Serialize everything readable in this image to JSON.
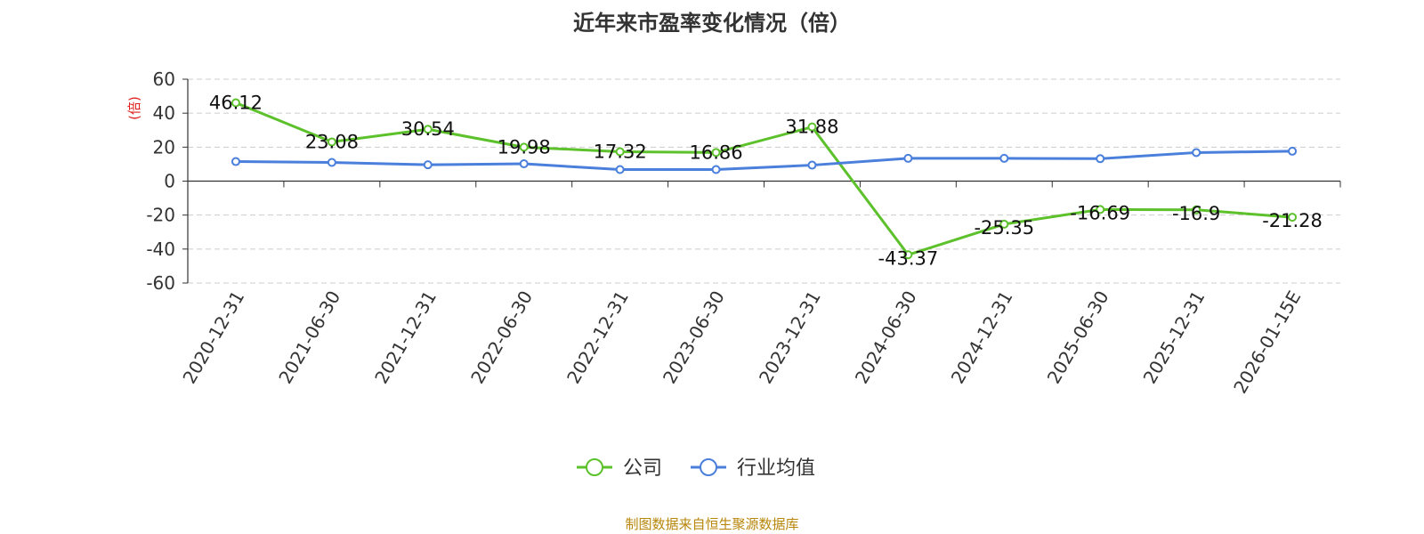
{
  "chart_data": {
    "type": "line",
    "title": "近年来市盈率变化情况（倍）",
    "ylabel": "(倍)",
    "ylim": [
      -60,
      60
    ],
    "yticks": [
      60,
      40,
      20,
      0,
      -20,
      -40,
      -60
    ],
    "grid": true,
    "legend_position": "bottom",
    "categories": [
      "2020-12-31",
      "2021-06-30",
      "2021-12-31",
      "2022-06-30",
      "2022-12-31",
      "2023-06-30",
      "2023-12-31",
      "2024-06-30",
      "2024-12-31",
      "2025-06-30",
      "2025-12-31",
      "2026-01-15E"
    ],
    "series": [
      {
        "name": "公司",
        "color": "#5CC12B",
        "show_labels": true,
        "values": [
          46.12,
          23.08,
          30.54,
          19.98,
          17.32,
          16.86,
          31.88,
          -43.37,
          -25.35,
          -16.69,
          -16.9,
          -21.28
        ],
        "labels": [
          "46.12",
          "23.08",
          "30.54",
          "19.98",
          "17.32",
          "16.86",
          "31.88",
          "-43.37",
          "-25.35",
          "-16.69",
          "-16.9",
          "-21.28"
        ]
      },
      {
        "name": "行业均值",
        "color": "#4A7FDB",
        "show_labels": false,
        "values": [
          11.5,
          11.0,
          9.6,
          10.2,
          6.8,
          6.8,
          9.4,
          13.4,
          13.4,
          13.2,
          16.8,
          17.6
        ]
      }
    ]
  },
  "source_text": "制图数据来自恒生聚源数据库",
  "colors": {
    "title": "#333333",
    "ylabel": "#E02020",
    "source": "#B8860B",
    "axis": "#333333",
    "grid": "#CCCCCC"
  }
}
